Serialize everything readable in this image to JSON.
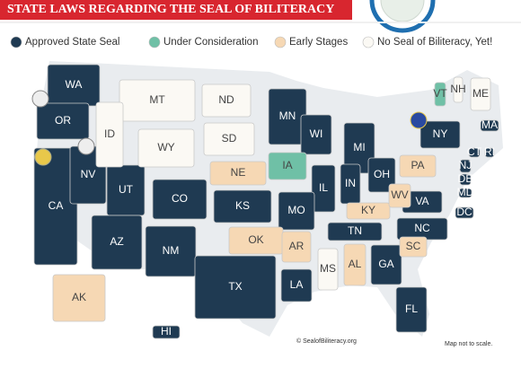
{
  "header": {
    "title": "STATE LAWS REGARDING THE SEAL OF BILITERACY"
  },
  "legend": [
    {
      "label": "Approved State Seal",
      "color": "#1f3a52",
      "states": [
        "WA",
        "OR",
        "CA",
        "NV",
        "UT",
        "AZ",
        "CO",
        "NM",
        "TX",
        "KS",
        "MN",
        "WI",
        "MI",
        "IL",
        "IN",
        "OH",
        "MO",
        "LA",
        "TN",
        "GA",
        "FL",
        "NC",
        "VA",
        "MD",
        "DE",
        "NJ",
        "NY",
        "CT",
        "RI",
        "MA",
        "HI",
        "DC"
      ]
    },
    {
      "label": "Under Consideration",
      "color": "#6fc0a6",
      "states": [
        "IA",
        "VT"
      ]
    },
    {
      "label": "Early Stages",
      "color": "#f6d8b4",
      "states": [
        "NE",
        "OK",
        "AR",
        "AL",
        "SC",
        "KY",
        "WV",
        "PA",
        "AK"
      ]
    },
    {
      "label": "No Seal of Biliteracy, Yet!",
      "color": "#fbf9f4",
      "states": [
        "MT",
        "ID",
        "WY",
        "ND",
        "SD",
        "MS",
        "NH",
        "ME"
      ]
    }
  ],
  "footer": {
    "credit": "© SealofBiliteracy.org",
    "note": "Map not to scale."
  }
}
